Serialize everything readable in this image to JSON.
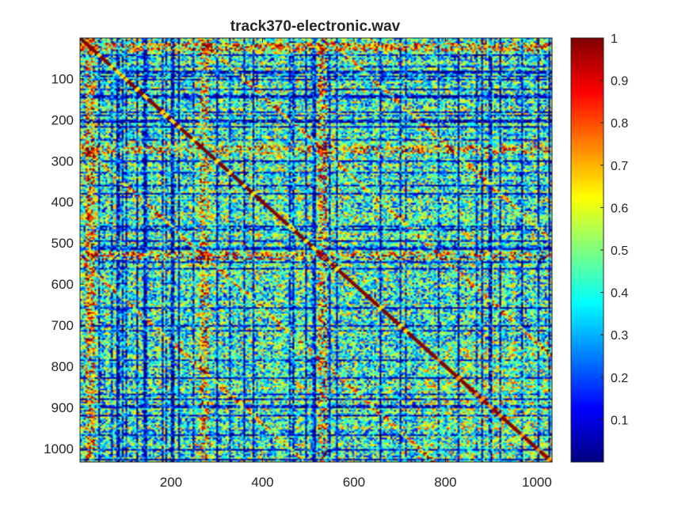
{
  "chart_data": {
    "type": "heatmap",
    "title": "track370-electronic.wav",
    "xlabel": "",
    "ylabel": "",
    "xlim": [
      1,
      1033
    ],
    "ylim": [
      1,
      1033
    ],
    "y_axis_direction": "top-to-bottom",
    "x_ticks": [
      200,
      400,
      600,
      800,
      1000
    ],
    "y_ticks": [
      100,
      200,
      300,
      400,
      500,
      600,
      700,
      800,
      900,
      1000
    ],
    "colormap": "jet",
    "clim": [
      0,
      1
    ],
    "colorbar_ticks": [
      0.1,
      0.2,
      0.3,
      0.4,
      0.5,
      0.6,
      0.7,
      0.8,
      0.9,
      1
    ],
    "description_of_values": "Symmetric self-similarity matrix; diagonal = 1; high-similarity (red) bands near rows/cols 20, 270, 530 and repeated diagonal stripes offset by ~260 and ~540; lower-right block (750-1033) moderately similar",
    "matrix_size": 1033,
    "grid": false
  },
  "colors": {
    "jet_dark_blue": "#00008f",
    "jet_blue": "#0000ff",
    "jet_cyan": "#00ffff",
    "jet_yellow": "#ffff00",
    "jet_red": "#ff0000",
    "jet_dark_red": "#800000",
    "axis": "#262626"
  }
}
